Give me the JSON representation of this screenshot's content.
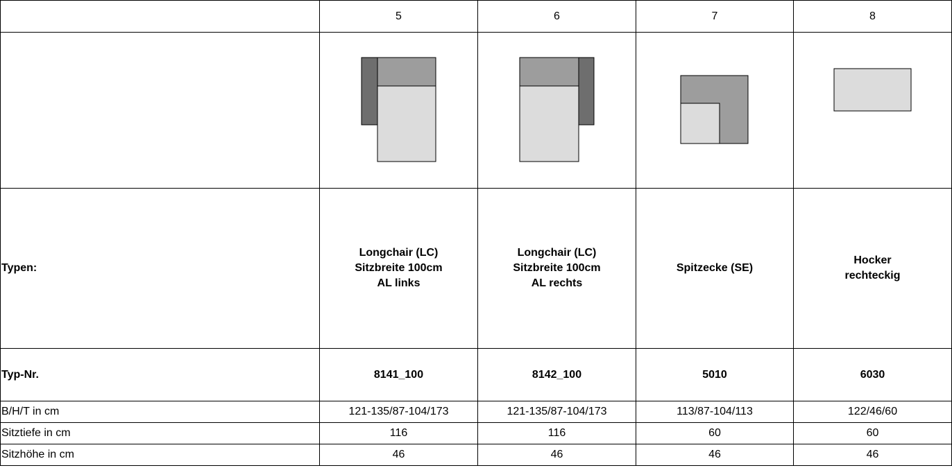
{
  "columns": [
    {
      "number": "5",
      "type_lines": [
        "Longchair (LC)",
        "Sitzbreite 100cm",
        "AL links"
      ],
      "type_nr": "8141_100",
      "bht": "121-135/87-104/173",
      "sitztiefe": "116",
      "sitzhoehe": "46",
      "diagram": "longchair-left-diagram"
    },
    {
      "number": "6",
      "type_lines": [
        "Longchair (LC)",
        "Sitzbreite 100cm",
        "AL rechts"
      ],
      "type_nr": "8142_100",
      "bht": "121-135/87-104/173",
      "sitztiefe": "116",
      "sitzhoehe": "46",
      "diagram": "longchair-right-diagram"
    },
    {
      "number": "7",
      "type_lines": [
        "Spitzecke (SE)"
      ],
      "type_nr": "5010",
      "bht": "113/87-104/113",
      "sitztiefe": "60",
      "sitzhoehe": "46",
      "diagram": "corner-diagram"
    },
    {
      "number": "8",
      "type_lines": [
        "Hocker",
        "rechteckig"
      ],
      "type_nr": "6030",
      "bht": "122/46/60",
      "sitztiefe": "60",
      "sitzhoehe": "46",
      "diagram": "stool-diagram"
    }
  ],
  "labels": {
    "typen": "Typen:",
    "typ_nr": "Typ-Nr.",
    "bht": "B/H/T in cm",
    "sitztiefe": "Sitztiefe in cm",
    "sitzhoehe": "Sitzhöhe in cm"
  },
  "colors": {
    "backrest": "#9d9d9d",
    "armrest": "#6e6e6e",
    "seat": "#dcdcdc"
  }
}
